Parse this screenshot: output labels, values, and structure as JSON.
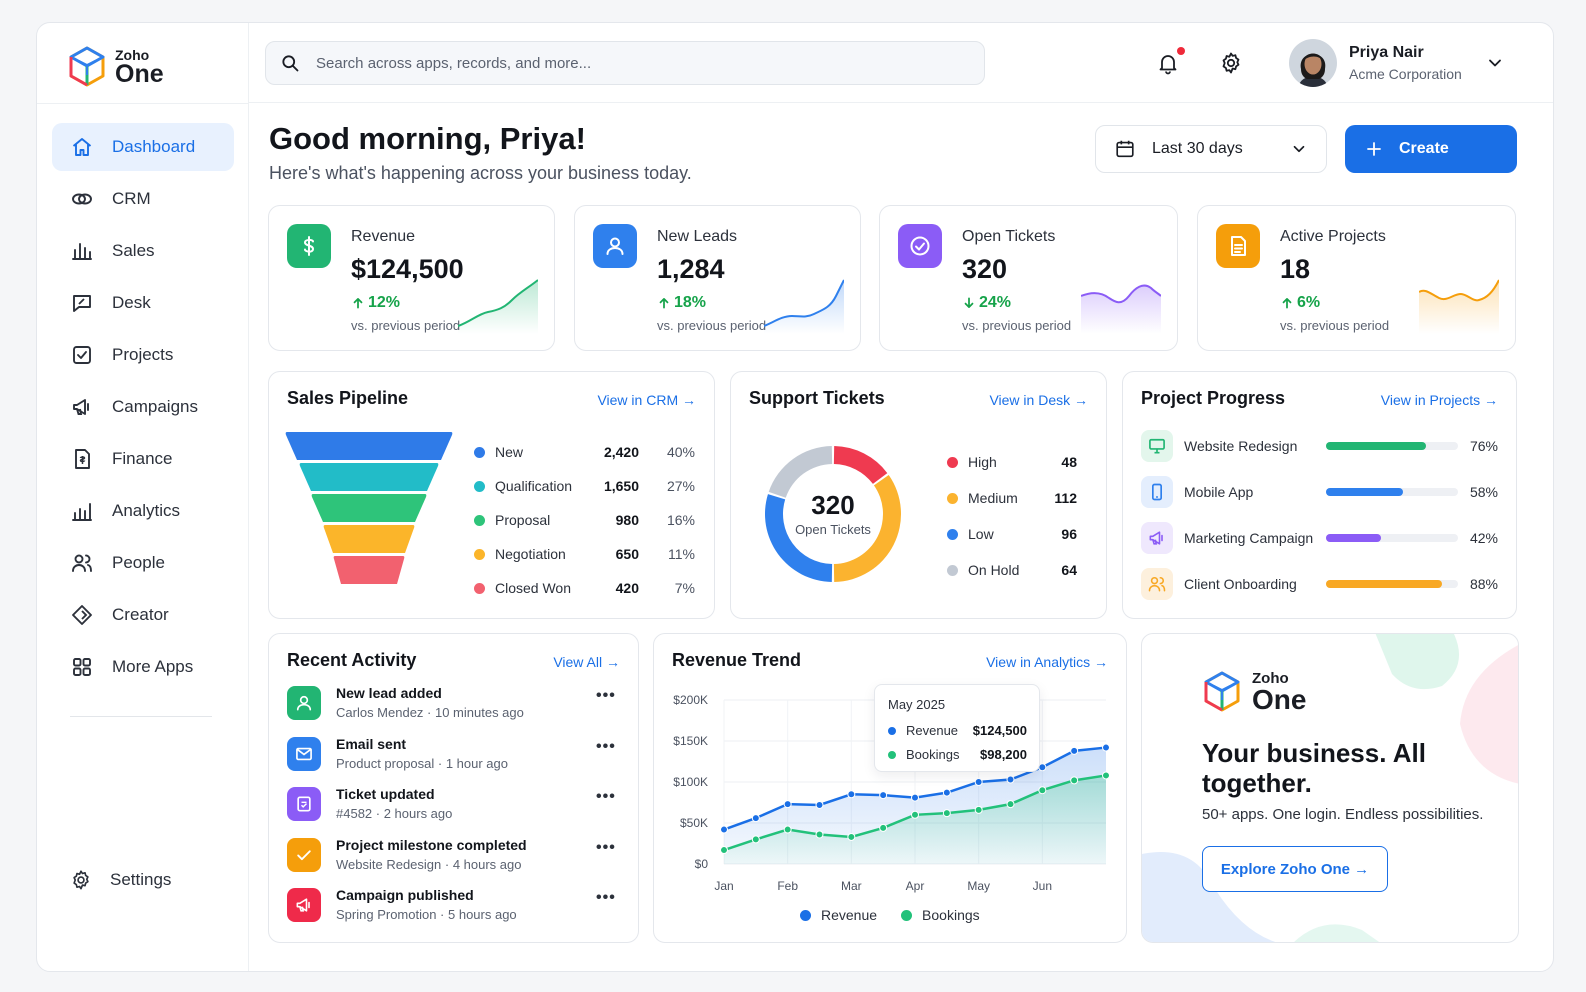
{
  "brand": {
    "small": "Zoho",
    "big": "One"
  },
  "sidebar": {
    "items": [
      {
        "label": "Dashboard",
        "icon": "home-icon",
        "active": true
      },
      {
        "label": "CRM",
        "icon": "crm-handshake-icon"
      },
      {
        "label": "Sales",
        "icon": "bar-chart-icon"
      },
      {
        "label": "Desk",
        "icon": "chat-edit-icon"
      },
      {
        "label": "Projects",
        "icon": "checkbox-icon"
      },
      {
        "label": "Campaigns",
        "icon": "megaphone-icon"
      },
      {
        "label": "Finance",
        "icon": "finance-doc-icon"
      },
      {
        "label": "Analytics",
        "icon": "analytics-icon"
      },
      {
        "label": "People",
        "icon": "people-icon"
      },
      {
        "label": "Creator",
        "icon": "creator-icon"
      },
      {
        "label": "More Apps",
        "icon": "grid-icon"
      }
    ],
    "settings_label": "Settings"
  },
  "topbar": {
    "search_placeholder": "Search across apps, records, and more...",
    "user_name": "Priya Nair",
    "user_org": "Acme Corporation"
  },
  "header": {
    "greeting": "Good morning, Priya!",
    "subtitle": "Here's what's happening across your business today.",
    "date_range": "Last 30 days",
    "create_label": "Create"
  },
  "kpis": [
    {
      "label": "Revenue",
      "value": "$124,500",
      "change": "12%",
      "direction": "up",
      "note": "vs. previous period",
      "color": "#22b573",
      "icon": "dollar-icon"
    },
    {
      "label": "New Leads",
      "value": "1,284",
      "change": "18%",
      "direction": "up",
      "note": "vs. previous period",
      "color": "#2f80ed",
      "icon": "user-icon"
    },
    {
      "label": "Open Tickets",
      "value": "320",
      "change": "24%",
      "direction": "down",
      "note": "vs. previous period",
      "color": "#8b5cf6",
      "icon": "check-circle-icon"
    },
    {
      "label": "Active Projects",
      "value": "18",
      "change": "6%",
      "direction": "up",
      "note": "vs. previous period",
      "color": "#f59e0b",
      "icon": "document-icon"
    }
  ],
  "pipeline": {
    "title": "Sales Pipeline",
    "link": "View in CRM →",
    "stages": [
      {
        "name": "New",
        "count": "2,420",
        "pct": "40%",
        "color": "#2f7be8"
      },
      {
        "name": "Qualification",
        "count": "1,650",
        "pct": "27%",
        "color": "#22bcc8"
      },
      {
        "name": "Proposal",
        "count": "980",
        "pct": "16%",
        "color": "#2ec47a"
      },
      {
        "name": "Negotiation",
        "count": "650",
        "pct": "11%",
        "color": "#fbb52a"
      },
      {
        "name": "Closed Won",
        "count": "420",
        "pct": "7%",
        "color": "#f2616f"
      }
    ]
  },
  "tickets": {
    "title": "Support Tickets",
    "link": "View in Desk →",
    "total": "320",
    "total_label": "Open Tickets",
    "segments": [
      {
        "name": "High",
        "value": "48",
        "color": "#ef3a50"
      },
      {
        "name": "Medium",
        "value": "112",
        "color": "#fbb32f"
      },
      {
        "name": "Low",
        "value": "96",
        "color": "#2f80ed"
      },
      {
        "name": "On Hold",
        "value": "64",
        "color": "#c2c9d3"
      }
    ]
  },
  "projects": {
    "title": "Project Progress",
    "link": "View in Projects →",
    "items": [
      {
        "name": "Website Redesign",
        "progress": 0.76,
        "pct": "76%",
        "color": "#22b573",
        "bg": "#e3f6ec",
        "icon": "monitor-icon"
      },
      {
        "name": "Mobile App",
        "progress": 0.58,
        "pct": "58%",
        "color": "#2f80ed",
        "bg": "#e4eefd",
        "icon": "phone-icon"
      },
      {
        "name": "Marketing Campaign",
        "progress": 0.42,
        "pct": "42%",
        "color": "#8b5cf6",
        "bg": "#efe8fd",
        "icon": "megaphone-icon"
      },
      {
        "name": "Client Onboarding",
        "progress": 0.88,
        "pct": "88%",
        "color": "#f8a824",
        "bg": "#fdf0dd",
        "icon": "people-icon"
      }
    ]
  },
  "activity": {
    "title": "Recent Activity",
    "link": "View All →",
    "items": [
      {
        "title": "New lead added",
        "sub": "Carlos Mendez · 10 minutes ago",
        "color": "#22b573",
        "icon": "user-icon"
      },
      {
        "title": "Email sent",
        "sub": "Product proposal · 1 hour ago",
        "color": "#2f80ed",
        "icon": "mail-icon"
      },
      {
        "title": "Ticket updated",
        "sub": "#4582 · 2 hours ago",
        "color": "#8b5cf6",
        "icon": "ticket-icon"
      },
      {
        "title": "Project milestone completed",
        "sub": "Website Redesign · 4 hours ago",
        "color": "#f59e0b",
        "icon": "check-icon"
      },
      {
        "title": "Campaign published",
        "sub": "Spring Promotion · 5 hours ago",
        "color": "#ef2a4a",
        "icon": "megaphone-icon"
      }
    ]
  },
  "trend": {
    "title": "Revenue Trend",
    "link": "View in Analytics →",
    "tooltip": {
      "month": "May 2025",
      "revenue_label": "Revenue",
      "revenue_value": "$124,500",
      "bookings_label": "Bookings",
      "bookings_value": "$98,200"
    }
  },
  "chart_data": {
    "type": "line",
    "xlabel": "",
    "ylabel": "",
    "x_tick_labels": [
      "Jan",
      "Feb",
      "Mar",
      "Apr",
      "May",
      "Jun"
    ],
    "y_tick_labels": [
      "$0",
      "$50K",
      "$100K",
      "$150K",
      "$200K"
    ],
    "ylim": [
      0,
      200000
    ],
    "grid": true,
    "legend": "bottom",
    "x": [
      0,
      0.5,
      1,
      1.5,
      2,
      2.5,
      3,
      3.5,
      4,
      4.5,
      5,
      5.5,
      6
    ],
    "series": [
      {
        "name": "Revenue",
        "color": "#1a6fe6",
        "values": [
          42000,
          56000,
          73000,
          72000,
          85000,
          84000,
          81000,
          87000,
          100000,
          103000,
          118000,
          138000,
          142000
        ]
      },
      {
        "name": "Bookings",
        "color": "#22c17a",
        "values": [
          17000,
          30000,
          42000,
          36000,
          33000,
          44000,
          60000,
          62000,
          66000,
          73000,
          90000,
          102000,
          108000
        ]
      }
    ]
  },
  "promo": {
    "brand_small": "Zoho",
    "brand_big": "One",
    "title": "Your business. All together.",
    "subtitle": "50+ apps. One login. Endless possibilities.",
    "cta": "Explore Zoho One →"
  }
}
